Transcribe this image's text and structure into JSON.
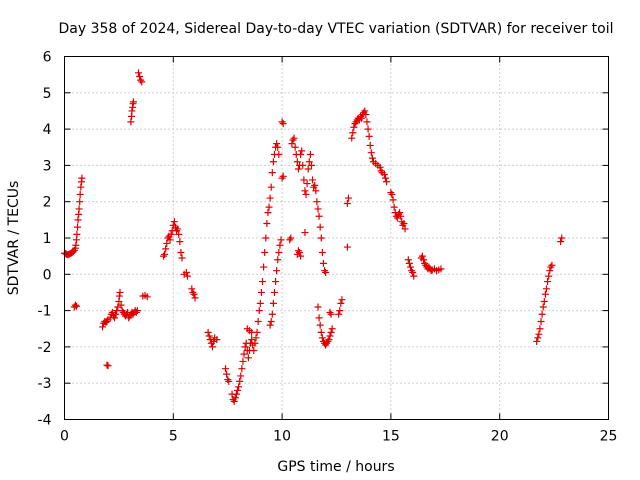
{
  "colors": {
    "series": "#e00000",
    "grid": "#a0a0a0",
    "axis": "#000000"
  },
  "chart_data": {
    "type": "scatter",
    "title": "Day 358 of 2024, Sidereal Day-to-day VTEC variation (SDTVAR) for receiver toil",
    "xlabel": "GPS time / hours",
    "ylabel": "SDTVAR / TECUs",
    "xlim": [
      0,
      25
    ],
    "ylim": [
      -4,
      6
    ],
    "xticks": [
      0,
      5,
      10,
      15,
      20,
      25
    ],
    "yticks": [
      -4,
      -3,
      -2,
      -1,
      0,
      1,
      2,
      3,
      4,
      5,
      6
    ],
    "xtick_labels": [
      "0",
      "5",
      "10",
      "15",
      "20",
      "25"
    ],
    "ytick_labels": [
      "-4",
      "-3",
      "-2",
      "-1",
      "0",
      "1",
      "2",
      "3",
      "4",
      "5",
      "6"
    ],
    "grid": true,
    "marker": "plus",
    "series": [
      {
        "name": "SDTVAR",
        "points": [
          [
            0.0,
            0.58
          ],
          [
            0.05,
            0.57
          ],
          [
            0.1,
            0.55
          ],
          [
            0.15,
            0.54
          ],
          [
            0.2,
            0.55
          ],
          [
            0.25,
            0.57
          ],
          [
            0.3,
            0.58
          ],
          [
            0.35,
            0.6
          ],
          [
            0.4,
            0.62
          ],
          [
            0.45,
            0.66
          ],
          [
            0.5,
            0.72
          ],
          [
            0.52,
            0.8
          ],
          [
            0.55,
            0.95
          ],
          [
            0.57,
            1.1
          ],
          [
            0.6,
            1.3
          ],
          [
            0.62,
            1.5
          ],
          [
            0.65,
            1.65
          ],
          [
            0.67,
            1.8
          ],
          [
            0.7,
            2.0
          ],
          [
            0.72,
            2.2
          ],
          [
            0.75,
            2.4
          ],
          [
            0.78,
            2.55
          ],
          [
            0.8,
            2.65
          ],
          [
            0.45,
            -0.9
          ],
          [
            0.5,
            -0.85
          ],
          [
            0.55,
            -0.88
          ],
          [
            1.75,
            -1.45
          ],
          [
            1.8,
            -1.35
          ],
          [
            1.85,
            -1.3
          ],
          [
            1.9,
            -1.32
          ],
          [
            1.95,
            -1.3
          ],
          [
            2.0,
            -1.25
          ],
          [
            2.1,
            -1.2
          ],
          [
            2.15,
            -1.1
          ],
          [
            2.2,
            -1.05
          ],
          [
            2.25,
            -1.15
          ],
          [
            2.3,
            -1.2
          ],
          [
            2.35,
            -1.1
          ],
          [
            2.4,
            -1.0
          ],
          [
            2.45,
            -0.9
          ],
          [
            2.5,
            -0.75
          ],
          [
            2.52,
            -0.6
          ],
          [
            2.55,
            -0.5
          ],
          [
            2.6,
            -0.85
          ],
          [
            2.65,
            -1.0
          ],
          [
            2.7,
            -1.05
          ],
          [
            2.75,
            -1.1
          ],
          [
            2.8,
            -1.15
          ],
          [
            2.85,
            -1.1
          ],
          [
            2.9,
            -1.05
          ],
          [
            2.95,
            -1.2
          ],
          [
            3.0,
            -1.15
          ],
          [
            3.05,
            -1.1
          ],
          [
            3.1,
            -1.05
          ],
          [
            3.15,
            -1.1
          ],
          [
            3.2,
            -1.05
          ],
          [
            3.25,
            -1.0
          ],
          [
            3.3,
            -1.05
          ],
          [
            3.35,
            -1.0
          ],
          [
            1.95,
            -2.5
          ],
          [
            2.0,
            -2.52
          ],
          [
            3.05,
            4.2
          ],
          [
            3.08,
            4.35
          ],
          [
            3.1,
            4.5
          ],
          [
            3.13,
            4.6
          ],
          [
            3.15,
            4.7
          ],
          [
            3.17,
            4.75
          ],
          [
            3.4,
            5.55
          ],
          [
            3.45,
            5.45
          ],
          [
            3.5,
            5.35
          ],
          [
            3.55,
            5.3
          ],
          [
            3.6,
            -0.6
          ],
          [
            3.7,
            -0.58
          ],
          [
            3.8,
            -0.62
          ],
          [
            4.55,
            0.5
          ],
          [
            4.6,
            0.55
          ],
          [
            4.65,
            0.7
          ],
          [
            4.7,
            0.85
          ],
          [
            4.75,
            1.0
          ],
          [
            4.8,
            1.05
          ],
          [
            4.85,
            0.95
          ],
          [
            4.9,
            1.1
          ],
          [
            4.95,
            1.2
          ],
          [
            5.0,
            1.35
          ],
          [
            5.05,
            1.45
          ],
          [
            5.1,
            1.3
          ],
          [
            5.15,
            1.2
          ],
          [
            5.2,
            1.25
          ],
          [
            5.25,
            1.1
          ],
          [
            5.3,
            0.9
          ],
          [
            5.35,
            0.6
          ],
          [
            5.4,
            0.45
          ],
          [
            5.5,
            0.0
          ],
          [
            5.6,
            0.05
          ],
          [
            5.65,
            -0.05
          ],
          [
            5.85,
            -0.4
          ],
          [
            5.9,
            -0.5
          ],
          [
            5.95,
            -0.55
          ],
          [
            6.0,
            -0.65
          ],
          [
            6.6,
            -1.6
          ],
          [
            6.65,
            -1.7
          ],
          [
            6.7,
            -1.8
          ],
          [
            6.75,
            -1.9
          ],
          [
            6.8,
            -2.0
          ],
          [
            6.85,
            -1.85
          ],
          [
            6.9,
            -1.75
          ],
          [
            7.0,
            -1.8
          ],
          [
            7.4,
            -2.6
          ],
          [
            7.45,
            -2.75
          ],
          [
            7.5,
            -2.9
          ],
          [
            7.55,
            -2.95
          ],
          [
            7.7,
            -3.3
          ],
          [
            7.75,
            -3.45
          ],
          [
            7.8,
            -3.5
          ],
          [
            7.85,
            -3.4
          ],
          [
            7.9,
            -3.3
          ],
          [
            7.95,
            -3.2
          ],
          [
            8.0,
            -3.1
          ],
          [
            8.05,
            -2.95
          ],
          [
            8.1,
            -2.8
          ],
          [
            8.15,
            -2.6
          ],
          [
            8.2,
            -2.4
          ],
          [
            8.25,
            -2.2
          ],
          [
            8.3,
            -2.0
          ],
          [
            8.35,
            -1.9
          ],
          [
            8.4,
            -2.1
          ],
          [
            8.45,
            -2.3
          ],
          [
            8.5,
            -2.1
          ],
          [
            8.55,
            -1.9
          ],
          [
            8.6,
            -1.8
          ],
          [
            8.65,
            -1.95
          ],
          [
            8.7,
            -2.1
          ],
          [
            8.75,
            -1.9
          ],
          [
            8.8,
            -1.75
          ],
          [
            8.85,
            -1.6
          ],
          [
            8.9,
            -1.3
          ],
          [
            8.95,
            -1.0
          ],
          [
            9.0,
            -0.8
          ],
          [
            9.05,
            -0.5
          ],
          [
            9.1,
            -0.2
          ],
          [
            9.15,
            0.2
          ],
          [
            9.2,
            0.6
          ],
          [
            9.25,
            1.0
          ],
          [
            9.3,
            1.4
          ],
          [
            9.35,
            1.7
          ],
          [
            9.4,
            1.85
          ],
          [
            9.45,
            2.1
          ],
          [
            9.5,
            2.4
          ],
          [
            9.55,
            2.8
          ],
          [
            9.6,
            3.1
          ],
          [
            9.65,
            3.3
          ],
          [
            9.7,
            3.5
          ],
          [
            9.75,
            3.6
          ],
          [
            9.8,
            3.5
          ],
          [
            9.85,
            3.3
          ],
          [
            8.4,
            -1.5
          ],
          [
            8.5,
            -1.55
          ],
          [
            8.6,
            -1.6
          ],
          [
            9.45,
            -1.4
          ],
          [
            9.5,
            -1.3
          ],
          [
            9.55,
            -1.1
          ],
          [
            9.6,
            -0.8
          ],
          [
            9.65,
            -0.5
          ],
          [
            9.7,
            -0.2
          ],
          [
            9.75,
            0.1
          ],
          [
            9.8,
            0.4
          ],
          [
            9.85,
            0.6
          ],
          [
            9.9,
            0.8
          ],
          [
            9.95,
            0.95
          ],
          [
            10.0,
            4.2
          ],
          [
            10.05,
            4.15
          ],
          [
            10.0,
            2.65
          ],
          [
            10.05,
            2.7
          ],
          [
            10.35,
            0.95
          ],
          [
            10.4,
            1.0
          ],
          [
            10.45,
            3.6
          ],
          [
            10.5,
            3.7
          ],
          [
            10.55,
            3.75
          ],
          [
            10.6,
            3.5
          ],
          [
            10.65,
            3.3
          ],
          [
            10.7,
            3.1
          ],
          [
            10.75,
            2.9
          ],
          [
            10.8,
            3.0
          ],
          [
            10.85,
            3.3
          ],
          [
            10.9,
            3.4
          ],
          [
            10.95,
            3.0
          ],
          [
            11.0,
            2.6
          ],
          [
            11.05,
            2.3
          ],
          [
            11.1,
            2.2
          ],
          [
            11.15,
            2.5
          ],
          [
            11.2,
            2.9
          ],
          [
            11.25,
            3.1
          ],
          [
            11.3,
            3.3
          ],
          [
            11.35,
            3.0
          ],
          [
            11.4,
            2.6
          ],
          [
            11.45,
            2.4
          ],
          [
            11.5,
            2.45
          ],
          [
            11.55,
            2.3
          ],
          [
            11.6,
            2.0
          ],
          [
            11.65,
            1.8
          ],
          [
            11.7,
            1.6
          ],
          [
            11.75,
            1.3
          ],
          [
            11.8,
            1.0
          ],
          [
            11.85,
            0.6
          ],
          [
            11.9,
            0.3
          ],
          [
            11.95,
            0.1
          ],
          [
            12.0,
            0.05
          ],
          [
            10.7,
            0.55
          ],
          [
            10.75,
            0.65
          ],
          [
            10.8,
            0.6
          ],
          [
            10.85,
            0.5
          ],
          [
            11.05,
            1.15
          ],
          [
            11.65,
            -0.9
          ],
          [
            11.7,
            -1.2
          ],
          [
            11.75,
            -1.4
          ],
          [
            11.8,
            -1.6
          ],
          [
            11.85,
            -1.75
          ],
          [
            11.9,
            -1.85
          ],
          [
            11.95,
            -1.9
          ],
          [
            12.0,
            -1.95
          ],
          [
            12.05,
            -1.9
          ],
          [
            12.1,
            -1.85
          ],
          [
            12.15,
            -1.8
          ],
          [
            12.2,
            -1.7
          ],
          [
            12.25,
            -1.6
          ],
          [
            12.3,
            -1.5
          ],
          [
            12.2,
            -1.05
          ],
          [
            12.25,
            -1.1
          ],
          [
            12.6,
            -1.1
          ],
          [
            12.65,
            -1.0
          ],
          [
            12.7,
            -0.8
          ],
          [
            12.75,
            -0.7
          ],
          [
            13.0,
            0.75
          ],
          [
            13.0,
            1.95
          ],
          [
            13.05,
            2.1
          ],
          [
            13.2,
            3.75
          ],
          [
            13.25,
            3.9
          ],
          [
            13.3,
            4.05
          ],
          [
            13.35,
            4.15
          ],
          [
            13.4,
            4.2
          ],
          [
            13.45,
            4.25
          ],
          [
            13.5,
            4.3
          ],
          [
            13.55,
            4.25
          ],
          [
            13.6,
            4.35
          ],
          [
            13.65,
            4.3
          ],
          [
            13.7,
            4.4
          ],
          [
            13.75,
            4.45
          ],
          [
            13.8,
            4.5
          ],
          [
            13.85,
            4.4
          ],
          [
            13.9,
            4.2
          ],
          [
            13.95,
            4.0
          ],
          [
            14.0,
            3.8
          ],
          [
            14.05,
            3.55
          ],
          [
            14.1,
            3.35
          ],
          [
            14.15,
            3.2
          ],
          [
            14.2,
            3.1
          ],
          [
            14.3,
            3.05
          ],
          [
            14.4,
            3.0
          ],
          [
            14.5,
            2.95
          ],
          [
            14.55,
            2.85
          ],
          [
            14.6,
            2.8
          ],
          [
            14.7,
            2.75
          ],
          [
            14.75,
            2.65
          ],
          [
            14.8,
            2.55
          ],
          [
            15.0,
            2.25
          ],
          [
            15.05,
            2.2
          ],
          [
            15.1,
            2.05
          ],
          [
            15.15,
            1.85
          ],
          [
            15.2,
            1.7
          ],
          [
            15.25,
            1.6
          ],
          [
            15.3,
            1.55
          ],
          [
            15.35,
            1.65
          ],
          [
            15.4,
            1.7
          ],
          [
            15.45,
            1.6
          ],
          [
            15.5,
            1.45
          ],
          [
            15.55,
            1.35
          ],
          [
            15.6,
            1.4
          ],
          [
            15.65,
            1.25
          ],
          [
            15.8,
            0.4
          ],
          [
            15.85,
            0.3
          ],
          [
            15.9,
            0.2
          ],
          [
            15.95,
            0.1
          ],
          [
            16.0,
            0.05
          ],
          [
            16.05,
            -0.05
          ],
          [
            16.4,
            0.45
          ],
          [
            16.45,
            0.5
          ],
          [
            16.5,
            0.4
          ],
          [
            16.55,
            0.3
          ],
          [
            16.6,
            0.25
          ],
          [
            16.65,
            0.2
          ],
          [
            16.7,
            0.15
          ],
          [
            16.75,
            0.2
          ],
          [
            16.8,
            0.15
          ],
          [
            16.85,
            0.1
          ],
          [
            16.9,
            0.12
          ],
          [
            17.0,
            0.15
          ],
          [
            17.1,
            0.1
          ],
          [
            17.2,
            0.12
          ],
          [
            17.3,
            0.15
          ],
          [
            21.7,
            -1.85
          ],
          [
            21.75,
            -1.75
          ],
          [
            21.8,
            -1.65
          ],
          [
            21.85,
            -1.5
          ],
          [
            21.9,
            -1.3
          ],
          [
            21.95,
            -1.1
          ],
          [
            22.0,
            -0.9
          ],
          [
            22.05,
            -0.75
          ],
          [
            22.1,
            -0.55
          ],
          [
            22.15,
            -0.4
          ],
          [
            22.2,
            -0.2
          ],
          [
            22.25,
            -0.05
          ],
          [
            22.3,
            0.1
          ],
          [
            22.35,
            0.2
          ],
          [
            22.4,
            0.25
          ],
          [
            22.8,
            0.9
          ],
          [
            22.85,
            1.0
          ]
        ]
      }
    ]
  }
}
